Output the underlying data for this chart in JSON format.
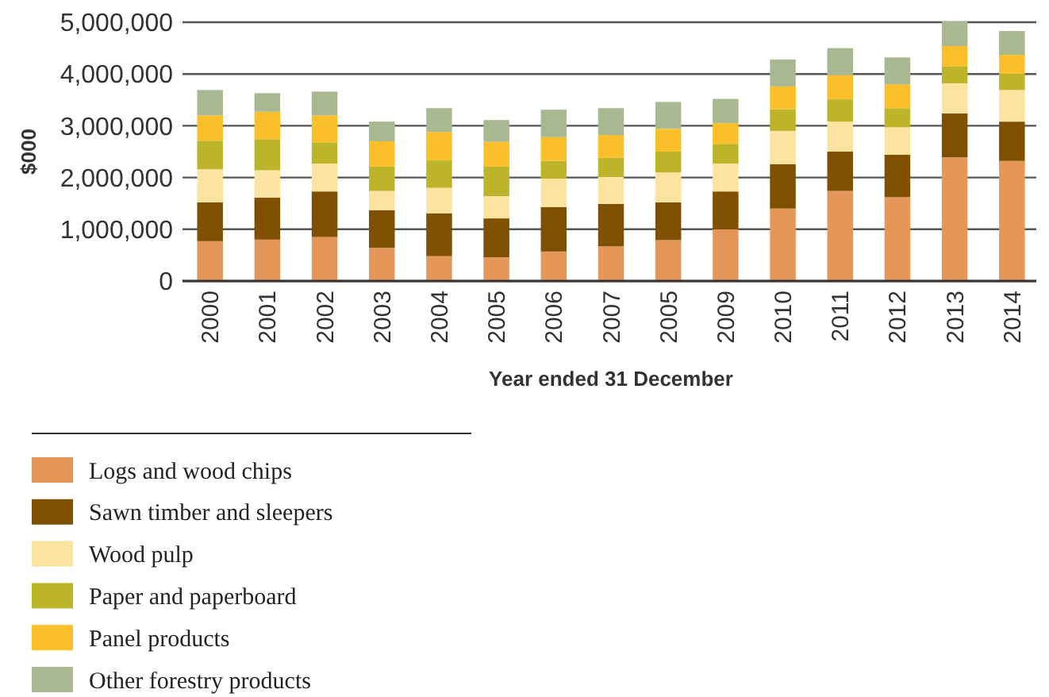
{
  "chart_data": {
    "type": "bar",
    "stacked": true,
    "ylabel": "$000",
    "xlabel": "Year ended 31 December",
    "categories": [
      "2000",
      "2001",
      "2002",
      "2003",
      "2004",
      "2005",
      "2006",
      "2007",
      "2005",
      "2009",
      "2010",
      "2011",
      "2012",
      "2013",
      "2014"
    ],
    "series": [
      {
        "name": "Logs and wood chips",
        "color": "#e5975a",
        "values": [
          770000,
          800000,
          850000,
          640000,
          480000,
          460000,
          570000,
          670000,
          790000,
          1000000,
          1400000,
          1740000,
          1620000,
          2390000,
          2320000
        ]
      },
      {
        "name": "Sawn timber and sleepers",
        "color": "#7f5000",
        "values": [
          750000,
          810000,
          880000,
          730000,
          830000,
          750000,
          860000,
          820000,
          730000,
          730000,
          860000,
          760000,
          820000,
          850000,
          760000
        ]
      },
      {
        "name": "Wood pulp",
        "color": "#fde3a0",
        "values": [
          640000,
          530000,
          540000,
          370000,
          490000,
          430000,
          550000,
          520000,
          580000,
          540000,
          640000,
          580000,
          530000,
          580000,
          610000
        ]
      },
      {
        "name": "Paper and paperboard",
        "color": "#bcb52a",
        "values": [
          550000,
          600000,
          410000,
          470000,
          530000,
          570000,
          340000,
          370000,
          400000,
          380000,
          420000,
          430000,
          370000,
          330000,
          310000
        ]
      },
      {
        "name": "Panel products",
        "color": "#fbbf2a",
        "values": [
          490000,
          530000,
          520000,
          490000,
          550000,
          480000,
          460000,
          440000,
          440000,
          400000,
          440000,
          470000,
          460000,
          390000,
          370000
        ]
      },
      {
        "name": "Other forestry products",
        "color": "#a8b890",
        "values": [
          490000,
          360000,
          460000,
          380000,
          460000,
          420000,
          530000,
          520000,
          520000,
          470000,
          520000,
          520000,
          520000,
          480000,
          460000
        ]
      }
    ],
    "ylim": [
      0,
      5000000
    ],
    "yticks": [
      {
        "value": 0,
        "label": "0"
      },
      {
        "value": 1000000,
        "label": "1,000,000"
      },
      {
        "value": 2000000,
        "label": "2,000,000"
      },
      {
        "value": 3000000,
        "label": "3,000,000"
      },
      {
        "value": 4000000,
        "label": "4,000,000"
      },
      {
        "value": 5000000,
        "label": "5,000,000"
      }
    ],
    "grid": "y",
    "legend": "bottom"
  }
}
